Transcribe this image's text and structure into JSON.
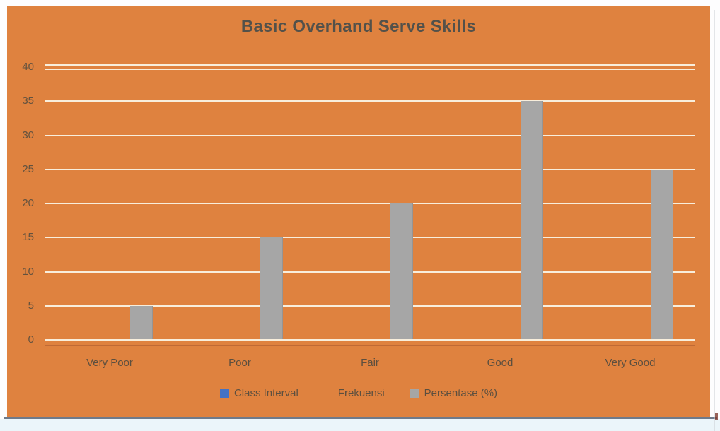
{
  "chart_data": {
    "type": "bar",
    "title": "Basic Overhand Serve Skills",
    "categories": [
      "Very Poor",
      "Poor",
      "Fair",
      "Good",
      "Very Good"
    ],
    "series": [
      {
        "name": "Persentase (%)",
        "color": "#A6A6A6",
        "values": [
          5,
          15,
          20,
          35,
          25
        ]
      }
    ],
    "legend": [
      {
        "label": "Class Interval",
        "swatch": "#4472C4"
      },
      {
        "label": "Frekuensi",
        "swatch": "#DF823F"
      },
      {
        "label": "Persentase (%)",
        "swatch": "#A6A6A6"
      }
    ],
    "legend_position": "bottom",
    "grid": true,
    "xlabel": "",
    "ylabel": "",
    "ylim": [
      0,
      40
    ],
    "ytick_step": 5,
    "yticks": [
      0,
      5,
      10,
      15,
      20,
      25,
      30,
      35,
      40
    ],
    "colors": {
      "plot_background": "#DF823F",
      "gridline": "#F8EEDC",
      "axis_line": "#C06A35",
      "title_text": "#53514A",
      "tick_text": "#63523F",
      "category_text": "#5C4F3F",
      "legend_text": "#5C4F3F"
    }
  },
  "frame": {
    "page_background": "#FDFDFE",
    "bottom_line_color": "#6F7A8A",
    "bottom_strip_color": "#EBF5FA",
    "right_line_color": "#C9CDD1",
    "corner_tick_color": "#7E3B2F"
  }
}
